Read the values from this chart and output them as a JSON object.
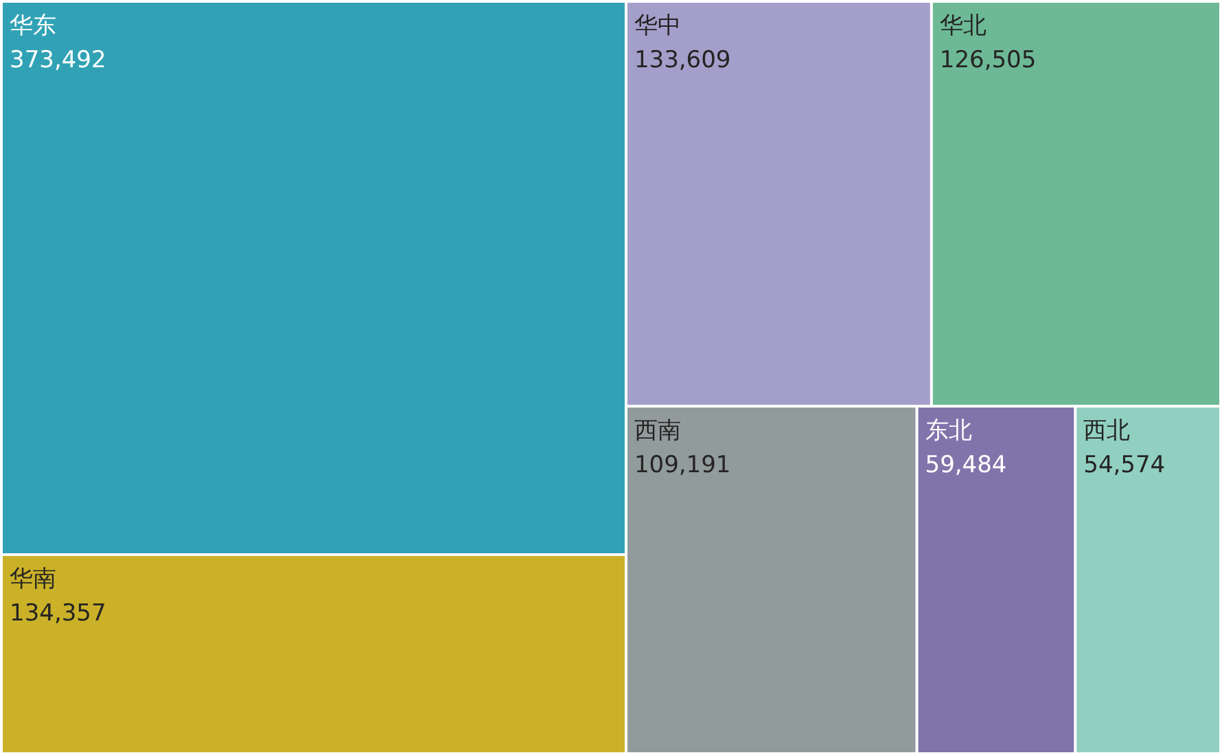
{
  "chart_data": {
    "type": "other",
    "categories": [
      "华东",
      "华南",
      "华中",
      "华北",
      "西南",
      "东北",
      "西北"
    ],
    "values": [
      373492,
      134357,
      133609,
      126505,
      109191,
      59484,
      54574
    ],
    "value_labels": [
      "373,492",
      "134,357",
      "133,609",
      "126,505",
      "109,191",
      "59,484",
      "54,574"
    ],
    "colors": [
      "#31a2b5",
      "#cbb128",
      "#a49fca",
      "#6db996",
      "#929b9c",
      "#8174ab",
      "#91d0c0"
    ]
  }
}
